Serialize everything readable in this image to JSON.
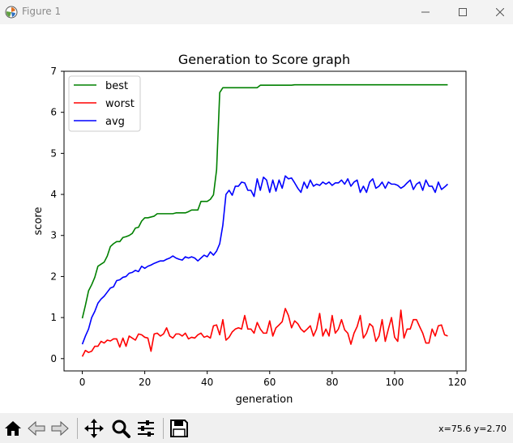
{
  "window": {
    "title": "Figure 1"
  },
  "toolbar": {
    "buttons": [
      "home-icon",
      "back-arrow-icon",
      "forward-arrow-icon",
      "pan-icon",
      "zoom-icon",
      "configure-subplots-icon",
      "save-icon"
    ],
    "coords": "x=75.6 y=2.70"
  },
  "colors": {
    "best": "#008000",
    "worst": "#ff0000",
    "avg": "#0000ff"
  },
  "chart_data": {
    "type": "line",
    "title": "Generation to Score graph",
    "xlabel": "generation",
    "ylabel": "score",
    "xlim": [
      -5.85,
      122.85
    ],
    "ylim": [
      -0.3,
      7
    ],
    "xticks": [
      "0",
      "20",
      "40",
      "60",
      "80",
      "100",
      "120"
    ],
    "yticks": [
      "0",
      "1",
      "2",
      "3",
      "4",
      "5",
      "6",
      "7"
    ],
    "legend_position": "top-left",
    "grid": false,
    "series": [
      {
        "name": "best",
        "color": "#008000",
        "values": [
          0.98,
          1.3,
          1.65,
          1.8,
          1.98,
          2.25,
          2.3,
          2.35,
          2.5,
          2.73,
          2.8,
          2.85,
          2.85,
          2.95,
          2.97,
          3.0,
          3.05,
          3.18,
          3.2,
          3.35,
          3.43,
          3.43,
          3.45,
          3.47,
          3.53,
          3.53,
          3.53,
          3.53,
          3.53,
          3.53,
          3.55,
          3.55,
          3.55,
          3.55,
          3.58,
          3.62,
          3.62,
          3.62,
          3.83,
          3.83,
          3.83,
          3.88,
          3.99,
          4.6,
          6.48,
          6.6,
          6.6,
          6.6,
          6.6,
          6.6,
          6.6,
          6.6,
          6.6,
          6.6,
          6.6,
          6.6,
          6.6,
          6.66,
          6.66,
          6.66,
          6.66,
          6.66,
          6.66,
          6.66,
          6.66,
          6.66,
          6.66,
          6.66,
          6.67,
          6.67,
          6.67,
          6.67,
          6.67,
          6.67,
          6.67,
          6.67,
          6.67,
          6.67,
          6.67,
          6.67,
          6.67,
          6.67,
          6.67,
          6.67,
          6.67,
          6.67,
          6.67,
          6.67,
          6.67,
          6.67,
          6.67,
          6.67,
          6.67,
          6.67,
          6.67,
          6.67,
          6.67,
          6.67,
          6.67,
          6.67,
          6.67,
          6.67,
          6.67,
          6.67,
          6.67,
          6.67,
          6.67,
          6.67,
          6.67,
          6.67,
          6.67,
          6.67,
          6.67,
          6.67,
          6.67,
          6.67,
          6.67,
          6.67
        ]
      },
      {
        "name": "worst",
        "color": "#ff0000",
        "values": [
          0.05,
          0.2,
          0.15,
          0.18,
          0.3,
          0.3,
          0.42,
          0.38,
          0.45,
          0.43,
          0.48,
          0.48,
          0.28,
          0.5,
          0.3,
          0.55,
          0.5,
          0.45,
          0.6,
          0.58,
          0.52,
          0.5,
          0.18,
          0.6,
          0.62,
          0.55,
          0.6,
          0.75,
          0.55,
          0.5,
          0.6,
          0.6,
          0.55,
          0.62,
          0.48,
          0.52,
          0.5,
          0.58,
          0.62,
          0.52,
          0.55,
          0.5,
          0.8,
          0.82,
          0.58,
          0.95,
          0.45,
          0.52,
          0.65,
          0.72,
          0.75,
          0.72,
          1.05,
          0.72,
          0.72,
          0.62,
          0.88,
          0.72,
          0.62,
          0.62,
          0.92,
          0.55,
          0.75,
          0.82,
          0.9,
          1.22,
          1.05,
          0.75,
          0.92,
          0.85,
          0.72,
          0.65,
          0.72,
          0.8,
          0.55,
          0.72,
          1.1,
          0.55,
          0.72,
          0.55,
          1.05,
          0.62,
          0.72,
          0.95,
          0.7,
          0.62,
          0.35,
          0.62,
          0.78,
          1.05,
          0.5,
          0.62,
          0.85,
          0.78,
          0.42,
          0.55,
          0.95,
          0.42,
          0.72,
          1.0,
          0.52,
          0.42,
          1.18,
          0.5,
          0.72,
          0.72,
          0.95,
          0.95,
          0.78,
          0.62,
          0.38,
          0.38,
          0.72,
          0.55,
          0.8,
          0.82,
          0.58,
          0.55
        ]
      },
      {
        "name": "avg",
        "color": "#0000ff",
        "values": [
          0.35,
          0.55,
          0.72,
          1.0,
          1.15,
          1.35,
          1.45,
          1.52,
          1.62,
          1.72,
          1.75,
          1.9,
          1.92,
          1.98,
          2.0,
          2.08,
          2.1,
          2.15,
          2.12,
          2.25,
          2.2,
          2.25,
          2.28,
          2.32,
          2.35,
          2.38,
          2.38,
          2.42,
          2.45,
          2.5,
          2.45,
          2.42,
          2.4,
          2.48,
          2.45,
          2.48,
          2.45,
          2.38,
          2.45,
          2.52,
          2.48,
          2.6,
          2.52,
          2.62,
          2.8,
          3.25,
          4.0,
          4.1,
          3.98,
          4.2,
          4.2,
          4.3,
          4.28,
          4.1,
          4.1,
          3.95,
          4.38,
          4.1,
          4.42,
          4.35,
          4.05,
          4.35,
          4.08,
          4.35,
          4.15,
          4.45,
          4.38,
          4.4,
          4.28,
          4.15,
          4.05,
          4.3,
          4.15,
          4.35,
          4.2,
          4.25,
          4.22,
          4.3,
          4.25,
          4.3,
          4.22,
          4.28,
          4.28,
          4.35,
          4.25,
          4.38,
          4.2,
          4.3,
          4.35,
          4.05,
          4.2,
          4.05,
          4.3,
          4.38,
          4.15,
          4.2,
          4.3,
          4.15,
          4.3,
          4.25,
          4.25,
          4.22,
          4.15,
          4.2,
          4.28,
          4.35,
          4.12,
          4.25,
          4.3,
          4.1,
          4.35,
          4.2,
          4.2,
          4.05,
          4.3,
          4.12,
          4.18,
          4.25
        ]
      }
    ]
  }
}
